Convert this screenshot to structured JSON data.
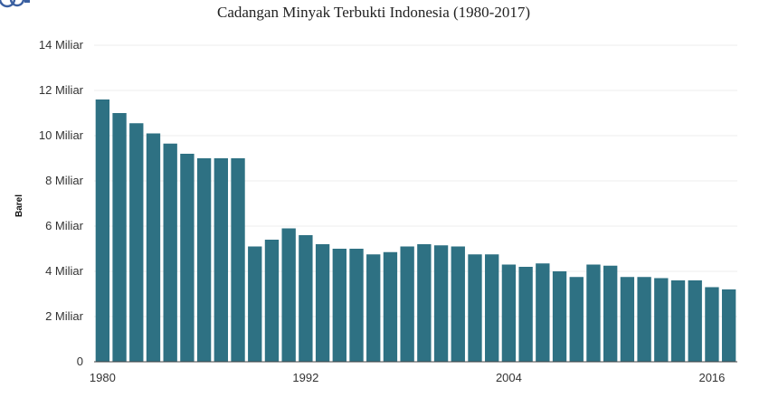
{
  "colors": {
    "bar": "#2e7183",
    "grid": "#ececec",
    "axis": "#444444"
  },
  "chart_data": {
    "type": "bar",
    "title": "Cadangan Minyak Terbukti Indonesia (1980-2017)",
    "xlabel": "",
    "ylabel": "Barel",
    "ylim": [
      0,
      14
    ],
    "yticks": [
      0,
      2,
      4,
      6,
      8,
      10,
      12,
      14
    ],
    "ytick_labels": [
      "0",
      "2 Miliar",
      "4 Miliar",
      "6 Miliar",
      "8 Miliar",
      "10 Miliar",
      "12 Miliar",
      "14 Miliar"
    ],
    "xtick_labels": [
      "1980",
      "1992",
      "2004",
      "2016"
    ],
    "unit": "Miliar",
    "grid": true,
    "categories": [
      "1980",
      "1981",
      "1982",
      "1983",
      "1984",
      "1985",
      "1986",
      "1987",
      "1988",
      "1989",
      "1990",
      "1991",
      "1992",
      "1993",
      "1994",
      "1995",
      "1996",
      "1997",
      "1998",
      "1999",
      "2000",
      "2001",
      "2002",
      "2003",
      "2004",
      "2005",
      "2006",
      "2007",
      "2008",
      "2009",
      "2010",
      "2011",
      "2012",
      "2013",
      "2014",
      "2015",
      "2016",
      "2017"
    ],
    "values": [
      11.6,
      11.0,
      10.55,
      10.1,
      9.65,
      9.2,
      9.0,
      9.0,
      9.0,
      5.1,
      5.4,
      5.9,
      5.6,
      5.2,
      5.0,
      5.0,
      4.75,
      4.85,
      5.1,
      5.2,
      5.15,
      5.1,
      4.75,
      4.75,
      4.3,
      4.2,
      4.35,
      4.0,
      3.75,
      4.3,
      4.25,
      3.75,
      3.75,
      3.7,
      3.6,
      3.6,
      3.3,
      3.2
    ]
  }
}
